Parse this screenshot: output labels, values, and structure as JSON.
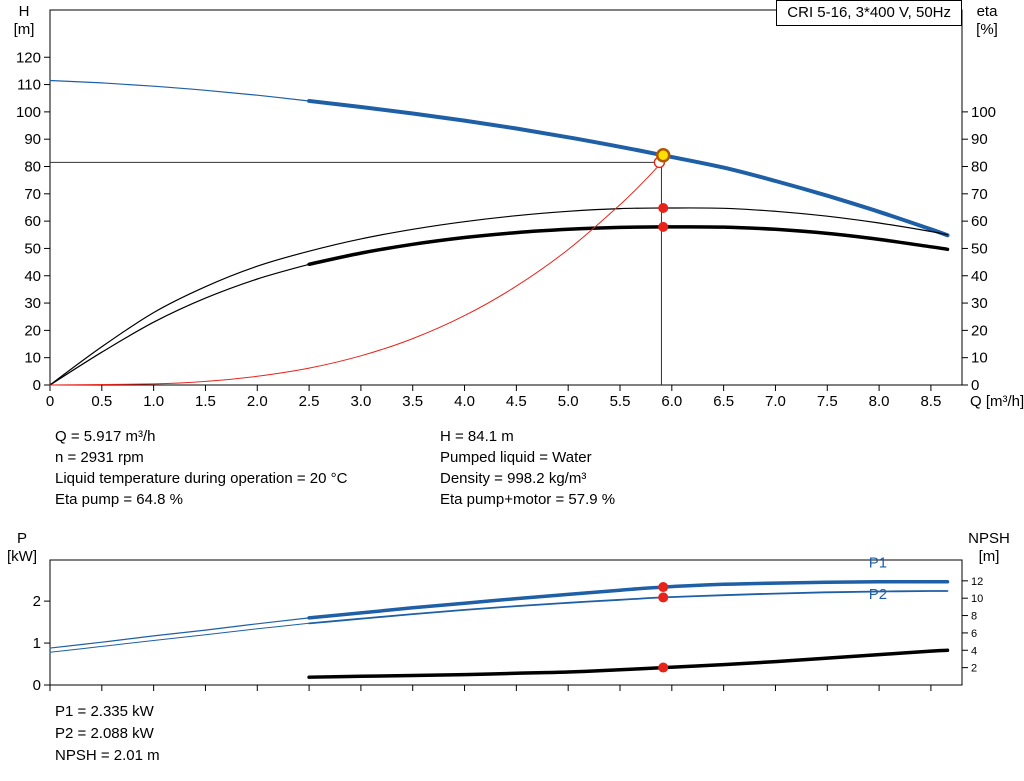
{
  "colors": {
    "blue": "#1e5fa6",
    "black": "#000000",
    "red": "#e8231a",
    "yellow": "#ffe000",
    "marker_ring": "#b05a00",
    "guide": "#333333"
  },
  "info_top": {
    "left": [
      "Q = 5.917 m³/h",
      "n = 2931 rpm",
      "Liquid temperature during operation = 20 °C",
      "Eta pump = 64.8 %"
    ],
    "right": [
      "H = 84.1 m",
      "Pumped liquid = Water",
      "Density = 998.2 kg/m³",
      "Eta pump+motor = 57.9 %"
    ]
  },
  "info_bottom": [
    "P1 = 2.335 kW",
    "P2 = 2.088 kW",
    "NPSH = 2.01 m"
  ],
  "chart_data": [
    {
      "type": "line",
      "title": "CRI 5-16, 3*400 V, 50Hz",
      "x_axis": {
        "label": "Q [m³/h]",
        "min": 0,
        "max": 8.8,
        "ticks": [
          0,
          0.5,
          1,
          1.5,
          2,
          2.5,
          3,
          3.5,
          4,
          4.5,
          5,
          5.5,
          6,
          6.5,
          7,
          7.5,
          8,
          8.5
        ],
        "tick_labels": [
          "0",
          "0.5",
          "1.0",
          "1.5",
          "2.0",
          "2.5",
          "3.0",
          "3.5",
          "4.0",
          "4.5",
          "5.0",
          "5.5",
          "6.0",
          "6.5",
          "7.0",
          "7.5",
          "8.0",
          "8.5"
        ]
      },
      "y_left": {
        "label": "H",
        "unit": "[m]",
        "min": 0,
        "max": 137.3,
        "ticks": [
          0,
          10,
          20,
          30,
          40,
          50,
          60,
          70,
          80,
          90,
          100,
          110,
          120
        ]
      },
      "y_right": {
        "label": "eta",
        "unit": "[%]",
        "min": 0,
        "max": 137.3,
        "ticks": [
          0,
          10,
          20,
          30,
          40,
          50,
          60,
          70,
          80,
          90,
          100
        ]
      },
      "series": [
        {
          "name": "head-curve-thin",
          "axis": "left",
          "color": "blue",
          "width": 1.2,
          "points": [
            [
              0,
              111.5
            ],
            [
              0.5,
              110.6
            ],
            [
              1,
              109.4
            ],
            [
              1.5,
              107.9
            ],
            [
              2,
              106.1
            ],
            [
              2.5,
              104
            ]
          ]
        },
        {
          "name": "head-curve",
          "axis": "left",
          "color": "blue",
          "width": 4,
          "points": [
            [
              2.5,
              104
            ],
            [
              3,
              101.8
            ],
            [
              3.5,
              99.4
            ],
            [
              4,
              96.8
            ],
            [
              4.5,
              93.9
            ],
            [
              5,
              90.7
            ],
            [
              5.5,
              87.2
            ],
            [
              5.917,
              84.1
            ],
            [
              6.5,
              79.6
            ],
            [
              7,
              74.7
            ],
            [
              7.5,
              69.3
            ],
            [
              8,
              63.4
            ],
            [
              8.5,
              57
            ],
            [
              8.66,
              54.8
            ]
          ]
        },
        {
          "name": "eta-pump-curve",
          "axis": "right",
          "color": "black",
          "width": 1.2,
          "points": [
            [
              0,
              0
            ],
            [
              0.5,
              14
            ],
            [
              1,
              26.5
            ],
            [
              1.5,
              36
            ],
            [
              2,
              43.5
            ],
            [
              2.5,
              49
            ],
            [
              3,
              53.5
            ],
            [
              3.5,
              57
            ],
            [
              4,
              59.8
            ],
            [
              4.5,
              62
            ],
            [
              5,
              63.6
            ],
            [
              5.5,
              64.6
            ],
            [
              5.917,
              64.8
            ],
            [
              6.5,
              64.7
            ],
            [
              7,
              63.6
            ],
            [
              7.5,
              61.8
            ],
            [
              8,
              59.3
            ],
            [
              8.5,
              56.2
            ],
            [
              8.66,
              55
            ]
          ]
        },
        {
          "name": "eta-pump-motor-thin",
          "axis": "right",
          "color": "black",
          "width": 1.2,
          "points": [
            [
              0,
              0
            ],
            [
              0.5,
              12
            ],
            [
              1,
              23
            ],
            [
              1.5,
              31.8
            ],
            [
              2,
              38.8
            ],
            [
              2.5,
              44.2
            ]
          ]
        },
        {
          "name": "eta-pump-motor-curve",
          "axis": "right",
          "color": "black",
          "width": 3.5,
          "points": [
            [
              2.5,
              44.2
            ],
            [
              3,
              48.3
            ],
            [
              3.5,
              51.5
            ],
            [
              4,
              54
            ],
            [
              4.5,
              55.8
            ],
            [
              5,
              57
            ],
            [
              5.5,
              57.7
            ],
            [
              5.917,
              57.9
            ],
            [
              6.5,
              57.8
            ],
            [
              7,
              57
            ],
            [
              7.5,
              55.5
            ],
            [
              8,
              53.3
            ],
            [
              8.5,
              50.6
            ],
            [
              8.66,
              49.7
            ]
          ]
        },
        {
          "name": "system-curve",
          "axis": "left",
          "color": "red",
          "width": 1,
          "points": [
            [
              0,
              0
            ],
            [
              1,
              0.4
            ],
            [
              1.5,
              1.3
            ],
            [
              2,
              3.2
            ],
            [
              2.5,
              6.2
            ],
            [
              3,
              10.7
            ],
            [
              3.5,
              17
            ],
            [
              4,
              25.4
            ],
            [
              4.5,
              36.2
            ],
            [
              5,
              49.6
            ],
            [
              5.5,
              66
            ],
            [
              5.75,
              75.3
            ],
            [
              5.9,
              81.5
            ]
          ]
        }
      ],
      "guides": [
        {
          "type": "h",
          "axis": "left",
          "y": 81.5,
          "x0": 0,
          "x1": 5.9
        },
        {
          "type": "v",
          "axis": "left",
          "x": 5.9,
          "y0": 0,
          "y1": 84.1
        }
      ],
      "markers": [
        {
          "name": "requested-duty-point",
          "axis": "left",
          "x": 5.88,
          "y": 81.5,
          "r": 5,
          "fill": "#ffffff",
          "stroke": "red",
          "sw": 1.4
        },
        {
          "name": "eta-pump-duty-point",
          "axis": "right",
          "x": 5.917,
          "y": 64.8,
          "r": 4.5,
          "fill": "red",
          "stroke": "red",
          "sw": 1
        },
        {
          "name": "eta-pump-motor-duty-point",
          "axis": "right",
          "x": 5.917,
          "y": 57.9,
          "r": 4.5,
          "fill": "red",
          "stroke": "red",
          "sw": 1
        },
        {
          "name": "duty-point",
          "axis": "left",
          "x": 5.917,
          "y": 84.1,
          "r": 6,
          "fill": "yellow",
          "stroke": "marker_ring",
          "sw": 2.5
        }
      ],
      "annotations": []
    },
    {
      "type": "line",
      "title": "",
      "x_axis": {
        "label": "",
        "min": 0,
        "max": 8.8,
        "ticks": [
          0,
          0.5,
          1,
          1.5,
          2,
          2.5,
          3,
          3.5,
          4,
          4.5,
          5,
          5.5,
          6,
          6.5,
          7,
          7.5,
          8,
          8.5
        ],
        "tick_labels": []
      },
      "y_left": {
        "label": "P",
        "unit": "[kW]",
        "min": 0,
        "max": 2.98,
        "ticks": [
          0,
          1,
          2
        ]
      },
      "y_right": {
        "label": "NPSH",
        "unit": "[m]",
        "min": 0,
        "max": 14.4,
        "ticks": [
          2,
          4,
          6,
          8,
          10,
          12
        ]
      },
      "series": [
        {
          "name": "p1-curve-thin",
          "axis": "left",
          "color": "blue",
          "width": 1.2,
          "points": [
            [
              0,
              0.88
            ],
            [
              0.5,
              1.02
            ],
            [
              1,
              1.17
            ],
            [
              1.5,
              1.31
            ],
            [
              2,
              1.46
            ],
            [
              2.5,
              1.6
            ]
          ]
        },
        {
          "name": "p1-curve",
          "axis": "left",
          "color": "blue",
          "width": 3.5,
          "points": [
            [
              2.5,
              1.6
            ],
            [
              3,
              1.72
            ],
            [
              3.5,
              1.84
            ],
            [
              4,
              1.95
            ],
            [
              4.5,
              2.06
            ],
            [
              5,
              2.16
            ],
            [
              5.5,
              2.26
            ],
            [
              5.917,
              2.335
            ],
            [
              6.5,
              2.4
            ],
            [
              7,
              2.43
            ],
            [
              7.5,
              2.45
            ],
            [
              8,
              2.46
            ],
            [
              8.5,
              2.46
            ],
            [
              8.66,
              2.46
            ]
          ]
        },
        {
          "name": "p2-curve-thin",
          "axis": "left",
          "color": "blue",
          "width": 1,
          "points": [
            [
              0,
              0.78
            ],
            [
              0.5,
              0.92
            ],
            [
              1,
              1.06
            ],
            [
              1.5,
              1.2
            ],
            [
              2,
              1.34
            ],
            [
              2.5,
              1.47
            ]
          ]
        },
        {
          "name": "p2-curve",
          "axis": "left",
          "color": "blue",
          "width": 1.8,
          "points": [
            [
              2.5,
              1.47
            ],
            [
              3,
              1.58
            ],
            [
              3.5,
              1.69
            ],
            [
              4,
              1.79
            ],
            [
              4.5,
              1.88
            ],
            [
              5,
              1.96
            ],
            [
              5.5,
              2.03
            ],
            [
              5.917,
              2.088
            ],
            [
              6.5,
              2.14
            ],
            [
              7,
              2.18
            ],
            [
              7.5,
              2.21
            ],
            [
              8,
              2.23
            ],
            [
              8.5,
              2.24
            ],
            [
              8.66,
              2.24
            ]
          ]
        },
        {
          "name": "npsh-curve",
          "axis": "right",
          "color": "black",
          "width": 3.5,
          "points": [
            [
              2.5,
              0.9
            ],
            [
              3,
              1.0
            ],
            [
              3.5,
              1.1
            ],
            [
              4,
              1.2
            ],
            [
              4.5,
              1.35
            ],
            [
              5,
              1.5
            ],
            [
              5.5,
              1.75
            ],
            [
              5.917,
              2.01
            ],
            [
              6.5,
              2.35
            ],
            [
              7,
              2.7
            ],
            [
              7.5,
              3.1
            ],
            [
              8,
              3.5
            ],
            [
              8.5,
              3.9
            ],
            [
              8.66,
              4.0
            ]
          ]
        }
      ],
      "guides": [],
      "markers": [
        {
          "name": "p1-duty-point",
          "axis": "left",
          "x": 5.917,
          "y": 2.335,
          "r": 4.5,
          "fill": "red",
          "stroke": "red",
          "sw": 1
        },
        {
          "name": "p2-duty-point",
          "axis": "left",
          "x": 5.917,
          "y": 2.088,
          "r": 4.5,
          "fill": "red",
          "stroke": "red",
          "sw": 1
        },
        {
          "name": "npsh-duty-point",
          "axis": "right",
          "x": 5.917,
          "y": 2.01,
          "r": 4.5,
          "fill": "red",
          "stroke": "red",
          "sw": 1
        }
      ],
      "annotations": [
        {
          "text": "P1",
          "axis": "left",
          "x": 7.9,
          "y": 2.8,
          "color": "blue"
        },
        {
          "text": "P2",
          "axis": "left",
          "x": 7.9,
          "y": 2.05,
          "color": "blue"
        }
      ]
    }
  ]
}
